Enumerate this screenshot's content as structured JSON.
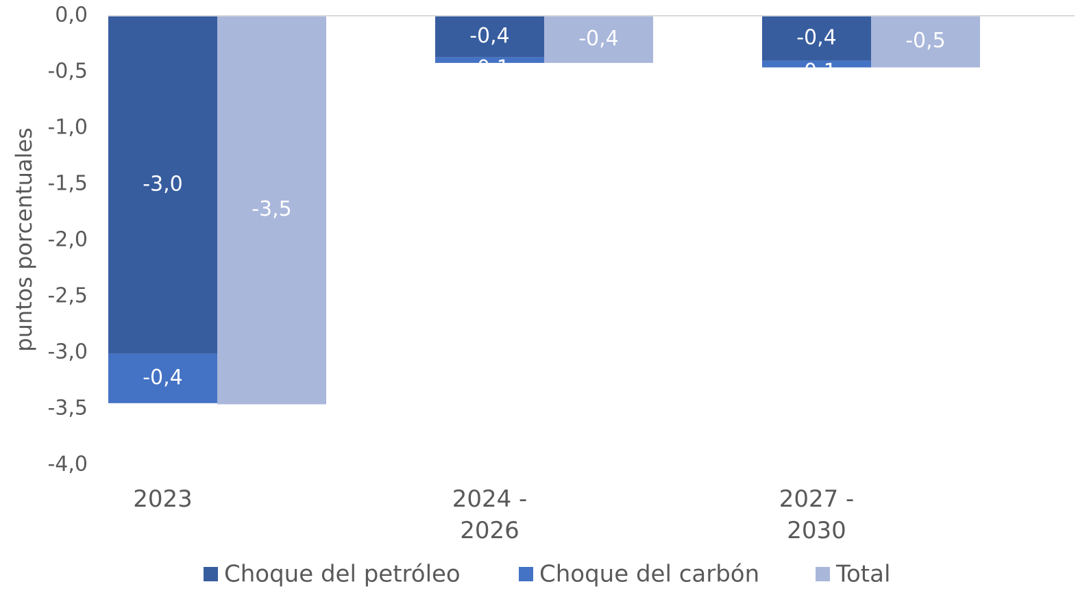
{
  "chart_data": {
    "type": "stacked_bar_with_total",
    "y_axis_label": "puntos porcentuales",
    "categories": [
      "2023",
      "2024 - 2026",
      "2027 - 2030"
    ],
    "series": [
      {
        "name": "Choque del petróleo",
        "color": "#375d9f",
        "values": [
          -3.01,
          -0.37,
          -0.4
        ],
        "value_labels": [
          "-3,0",
          "-0,4",
          "-0,4"
        ]
      },
      {
        "name": "Choque del carbón",
        "color": "#4472c4",
        "values": [
          -0.44,
          -0.05,
          -0.06
        ],
        "value_labels": [
          "-0,4",
          "-0,1",
          "-0,1"
        ]
      },
      {
        "name": "Total",
        "color": "#a9b7db",
        "values": [
          -3.46,
          -0.42,
          -0.46
        ],
        "value_labels": [
          "-3,5",
          "-0,4",
          "-0,5"
        ]
      }
    ],
    "ylim": [
      -4,
      0
    ],
    "yticks": [
      {
        "value": 0,
        "label": "0,0"
      },
      {
        "value": -0.5,
        "label": "-0,5"
      },
      {
        "value": -1,
        "label": "-1,0"
      },
      {
        "value": -1.5,
        "label": "-1,5"
      },
      {
        "value": -2,
        "label": "-2,0"
      },
      {
        "value": -2.5,
        "label": "-2,5"
      },
      {
        "value": -3,
        "label": "-3,0"
      },
      {
        "value": -3.5,
        "label": "-3,5"
      },
      {
        "value": -4,
        "label": "-4,0"
      }
    ],
    "legend": "bottom"
  }
}
